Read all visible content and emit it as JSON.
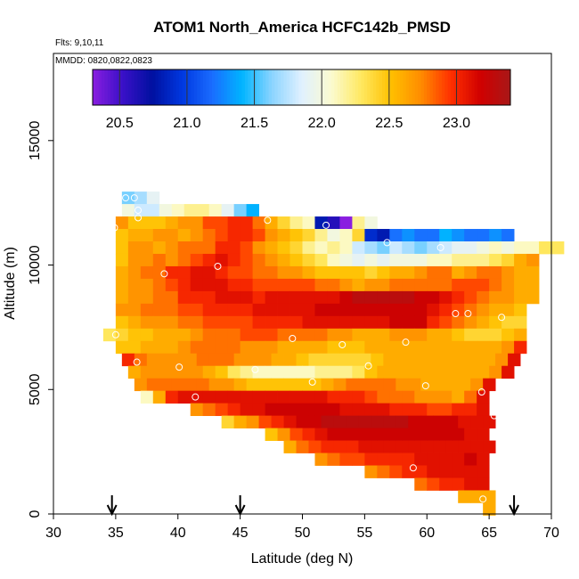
{
  "chart_data": {
    "type": "heatmap",
    "title": "ATOM1 North_America HCFC142b_PMSD",
    "annotations": [
      "Flts: 9,10,11",
      "MMDD: 0820,0822,0823"
    ],
    "xlabel": "Latitude (deg N)",
    "ylabel": "Altitude (m)",
    "xlim": [
      30,
      70
    ],
    "ylim": [
      0,
      18500
    ],
    "x_ticks": [
      30,
      35,
      40,
      45,
      50,
      55,
      60,
      65,
      70
    ],
    "x_tick_labels": [
      "30",
      "35",
      "40",
      "45",
      "50",
      "55",
      "60",
      "65",
      "70"
    ],
    "y_ticks": [
      0,
      5000,
      10000,
      15000
    ],
    "y_tick_labels": [
      "0",
      "5000",
      "10000",
      "15000"
    ],
    "colorbar": {
      "range": [
        20.3,
        23.4
      ],
      "ticks": [
        20.5,
        21.0,
        21.5,
        22.0,
        22.5,
        23.0
      ],
      "tick_labels": [
        "20.5",
        "21.0",
        "21.5",
        "22.0",
        "22.5",
        "23.0"
      ],
      "colors": [
        "#8a1ee0",
        "#3a10c8",
        "#0010a0",
        "#0038e0",
        "#1a6cff",
        "#00b4ff",
        "#8ad4ff",
        "#e0f0ff",
        "#fbfbd0",
        "#ffe860",
        "#ffc000",
        "#ff8c00",
        "#ff3000",
        "#d00000",
        "#a81818"
      ]
    },
    "grid": false,
    "legend": "colorbar top inside plot",
    "cell_size": {
      "dlat": 1.0,
      "dalt": 500
    },
    "cells_rows": [
      {
        "alt": 12700,
        "lat0": 35.5,
        "values": [
          21.6,
          21.7,
          21.9
        ]
      },
      {
        "alt": 12200,
        "lat0": 35.5,
        "values": [
          22.0,
          21.8,
          21.8,
          22.0,
          22.1,
          22.2,
          22.2,
          22.1,
          21.9,
          21.6,
          21.4
        ]
      },
      {
        "alt": 11700,
        "lat0": 35.0,
        "values": [
          22.7,
          22.5,
          22.5,
          22.5,
          22.6,
          22.7,
          22.7,
          22.9,
          22.9,
          23.0,
          23.0,
          22.8,
          22.6,
          22.4,
          22.2,
          22.1,
          20.8,
          20.6,
          20.3,
          22.2,
          22.0
        ]
      },
      {
        "alt": 11200,
        "lat0": 35.0,
        "values": [
          22.5,
          22.6,
          22.6,
          22.7,
          22.7,
          22.6,
          22.7,
          22.8,
          22.9,
          23.0,
          23.0,
          22.9,
          22.7,
          22.6,
          22.5,
          22.4,
          22.2,
          22.0,
          22.1,
          22.4,
          20.9,
          20.8,
          21.2,
          21.3,
          21.2,
          21.2,
          21.4,
          21.3,
          21.2,
          21.2,
          21.3,
          21.2
        ]
      },
      {
        "alt": 10700,
        "lat0": 35.0,
        "values": [
          22.5,
          22.7,
          22.7,
          22.6,
          22.7,
          22.8,
          22.8,
          22.8,
          23.0,
          23.0,
          22.9,
          22.7,
          22.6,
          22.5,
          22.4,
          22.2,
          22.1,
          22.2,
          22.1,
          21.8,
          21.7,
          21.6,
          21.8,
          21.7,
          21.6,
          21.7,
          21.8,
          21.9,
          21.9,
          22.0,
          22.1,
          22.0,
          22.1,
          22.1,
          22.3,
          22.3
        ]
      },
      {
        "alt": 10200,
        "lat0": 35.0,
        "values": [
          22.5,
          22.7,
          22.7,
          22.8,
          22.7,
          22.8,
          22.9,
          23.0,
          23.1,
          23.0,
          22.9,
          22.8,
          22.7,
          22.6,
          22.5,
          22.4,
          22.3,
          22.1,
          22.0,
          21.9,
          22.0,
          21.9,
          22.0,
          22.0,
          22.0,
          22.1,
          22.1,
          22.2,
          22.2,
          22.2,
          22.3,
          22.4,
          22.6,
          22.7
        ]
      },
      {
        "alt": 9700,
        "lat0": 35.0,
        "values": [
          22.6,
          22.7,
          22.8,
          22.8,
          23.0,
          23.0,
          23.1,
          23.1,
          23.0,
          22.9,
          22.9,
          22.8,
          22.8,
          22.7,
          22.7,
          22.6,
          22.5,
          22.5,
          22.5,
          22.5,
          22.4,
          22.5,
          22.6,
          22.6,
          22.7,
          22.8,
          22.8,
          22.6,
          22.7,
          22.8,
          22.8,
          22.7,
          22.6,
          22.6
        ]
      },
      {
        "alt": 9200,
        "lat0": 35.0,
        "values": [
          22.6,
          22.7,
          22.7,
          22.8,
          22.9,
          23.0,
          23.1,
          23.1,
          23.1,
          23.0,
          23.0,
          22.9,
          22.9,
          22.9,
          22.9,
          22.9,
          22.8,
          22.8,
          22.7,
          22.6,
          22.7,
          22.7,
          22.8,
          22.8,
          22.8,
          22.8,
          22.8,
          22.9,
          22.9,
          22.9,
          22.8,
          22.7,
          22.6,
          22.6
        ]
      },
      {
        "alt": 8700,
        "lat0": 35.0,
        "values": [
          22.6,
          22.7,
          22.7,
          22.8,
          22.8,
          23.0,
          23.0,
          23.0,
          23.1,
          23.1,
          23.1,
          23.0,
          23.1,
          23.1,
          23.1,
          23.1,
          23.1,
          23.1,
          23.2,
          23.3,
          23.3,
          23.3,
          23.3,
          23.3,
          23.2,
          23.2,
          23.1,
          23.0,
          22.9,
          22.8,
          22.7,
          22.7,
          22.6,
          22.6
        ]
      },
      {
        "alt": 8200,
        "lat0": 35.0,
        "values": [
          22.7,
          22.7,
          22.8,
          22.8,
          22.8,
          22.9,
          22.9,
          23.0,
          23.0,
          23.0,
          23.0,
          23.1,
          23.1,
          23.1,
          23.1,
          23.1,
          23.2,
          23.2,
          23.2,
          23.2,
          23.2,
          23.2,
          23.2,
          23.2,
          23.2,
          23.1,
          23.0,
          22.9,
          22.8,
          22.7,
          22.6,
          22.6,
          22.5
        ]
      },
      {
        "alt": 7700,
        "lat0": 35.0,
        "values": [
          22.5,
          22.6,
          22.7,
          22.7,
          22.7,
          22.8,
          22.8,
          22.9,
          22.9,
          22.9,
          22.9,
          23.0,
          23.0,
          23.0,
          23.0,
          23.1,
          23.1,
          23.1,
          23.1,
          23.1,
          23.1,
          23.1,
          23.2,
          23.2,
          23.2,
          23.0,
          22.9,
          22.8,
          22.7,
          22.6,
          22.5,
          22.4,
          22.4
        ]
      },
      {
        "alt": 7200,
        "lat0": 34.0,
        "values": [
          22.3,
          22.4,
          22.5,
          22.5,
          22.6,
          22.6,
          22.6,
          22.7,
          22.8,
          22.8,
          22.8,
          22.9,
          22.9,
          22.9,
          22.8,
          22.8,
          22.8,
          22.8,
          22.7,
          22.7,
          22.6,
          22.6,
          22.6,
          22.7,
          22.7,
          22.7,
          22.6,
          22.6,
          22.5,
          22.4,
          22.4,
          22.4,
          22.5,
          22.6
        ]
      },
      {
        "alt": 6700,
        "lat0": 35.0,
        "values": [
          22.5,
          22.5,
          22.6,
          22.6,
          22.6,
          22.7,
          22.8,
          22.8,
          22.8,
          22.8,
          22.7,
          22.7,
          22.7,
          22.6,
          22.6,
          22.6,
          22.6,
          22.5,
          22.5,
          22.5,
          22.6,
          22.6,
          22.6,
          22.6,
          22.6,
          22.6,
          22.6,
          22.6,
          22.6,
          22.6,
          22.6,
          22.7,
          23.0
        ]
      },
      {
        "alt": 6200,
        "lat0": 35.5,
        "values": [
          23.0,
          22.8,
          22.7,
          22.7,
          22.7,
          22.7,
          22.8,
          22.8,
          22.8,
          22.7,
          22.7,
          22.7,
          22.6,
          22.6,
          22.5,
          22.4,
          22.4,
          22.4,
          22.4,
          22.4,
          22.5,
          22.6,
          22.6,
          22.6,
          22.6,
          22.6,
          22.6,
          22.6,
          22.6,
          22.6,
          22.7,
          23.1
        ]
      },
      {
        "alt": 5700,
        "lat0": 36.0,
        "values": [
          22.6,
          22.7,
          22.7,
          22.7,
          22.7,
          22.7,
          22.6,
          22.5,
          22.3,
          22.2,
          22.1,
          22.1,
          22.1,
          22.1,
          22.1,
          22.2,
          22.2,
          22.2,
          22.3,
          22.5,
          22.6,
          22.6,
          22.6,
          22.6,
          22.6,
          22.6,
          22.6,
          22.6,
          22.6,
          22.7,
          23.1
        ]
      },
      {
        "alt": 5200,
        "lat0": 36.5,
        "values": [
          22.7,
          22.8,
          22.8,
          22.8,
          22.8,
          22.8,
          22.7,
          22.7,
          22.6,
          22.5,
          22.5,
          22.5,
          22.5,
          22.5,
          22.5,
          22.6,
          22.7,
          22.8,
          22.8,
          22.8,
          22.8,
          22.7,
          22.7,
          22.6,
          22.6,
          22.6,
          22.6,
          22.7,
          23.1
        ]
      },
      {
        "alt": 4700,
        "lat0": 37.0,
        "values": [
          22.1,
          22.6,
          23.0,
          23.1,
          23.1,
          23.1,
          23.1,
          23.1,
          23.1,
          23.1,
          23.1,
          23.1,
          23.1,
          23.1,
          23.1,
          23.0,
          23.0,
          23.0,
          22.9,
          22.8,
          22.8,
          22.8,
          22.7,
          22.7,
          22.7,
          22.6,
          22.8,
          23.1
        ]
      },
      {
        "alt": 4200,
        "lat0": 41.0,
        "values": [
          22.7,
          22.8,
          22.9,
          23.0,
          23.1,
          23.1,
          23.2,
          23.2,
          23.2,
          23.2,
          23.2,
          23.2,
          23.1,
          23.1,
          23.1,
          23.1,
          23.0,
          23.0,
          23.0,
          22.9,
          22.9,
          23.0,
          23.0,
          23.1
        ]
      },
      {
        "alt": 3700,
        "lat0": 43.5,
        "values": [
          22.4,
          22.6,
          22.7,
          22.9,
          23.0,
          23.1,
          23.2,
          23.2,
          23.3,
          23.3,
          23.3,
          23.3,
          23.3,
          23.3,
          23.3,
          23.2,
          23.2,
          23.2,
          23.2,
          23.1,
          23.1,
          23.1
        ]
      },
      {
        "alt": 3200,
        "lat0": 47.0,
        "values": [
          22.5,
          22.7,
          22.9,
          23.0,
          23.1,
          23.2,
          23.2,
          23.2,
          23.2,
          23.2,
          23.2,
          23.2,
          23.2,
          23.2,
          23.2,
          23.2,
          23.1,
          23.1
        ]
      },
      {
        "alt": 2700,
        "lat0": 48.5,
        "values": [
          22.6,
          22.8,
          22.9,
          23.0,
          23.0,
          23.0,
          23.1,
          23.1,
          23.1,
          23.1,
          23.1,
          23.1,
          23.1,
          23.1,
          23.1,
          23.1,
          23.1
        ]
      },
      {
        "alt": 2200,
        "lat0": 51.0,
        "values": [
          22.7,
          22.8,
          22.9,
          22.9,
          23.0,
          23.0,
          23.0,
          23.0,
          23.1,
          23.1,
          23.1,
          23.1,
          23.2,
          23.1
        ]
      },
      {
        "alt": 1700,
        "lat0": 55.0,
        "values": [
          22.7,
          22.8,
          22.9,
          23.0,
          23.0,
          23.1,
          23.1,
          23.1,
          23.1,
          23.1
        ]
      },
      {
        "alt": 1200,
        "lat0": 59.0,
        "values": [
          22.8,
          22.9,
          23.0,
          23.0,
          23.1,
          23.1
        ]
      },
      {
        "alt": 700,
        "lat0": 62.5,
        "values": [
          22.6,
          22.6,
          22.6
        ]
      },
      {
        "alt": 200,
        "lat0": 64.5,
        "values": [
          22.6
        ]
      }
    ],
    "sample_points": [
      {
        "lat": 35.8,
        "alt": 12700
      },
      {
        "lat": 36.5,
        "alt": 12700
      },
      {
        "lat": 36.8,
        "alt": 12200
      },
      {
        "lat": 36.8,
        "alt": 11900
      },
      {
        "lat": 34.9,
        "alt": 11500
      },
      {
        "lat": 47.2,
        "alt": 11800
      },
      {
        "lat": 51.9,
        "alt": 11600
      },
      {
        "lat": 56.8,
        "alt": 10900
      },
      {
        "lat": 61.1,
        "alt": 10700
      },
      {
        "lat": 43.2,
        "alt": 9950
      },
      {
        "lat": 38.9,
        "alt": 9650
      },
      {
        "lat": 62.3,
        "alt": 8050
      },
      {
        "lat": 63.3,
        "alt": 8050
      },
      {
        "lat": 66.0,
        "alt": 7900
      },
      {
        "lat": 35.0,
        "alt": 7200
      },
      {
        "lat": 49.2,
        "alt": 7050
      },
      {
        "lat": 53.2,
        "alt": 6800
      },
      {
        "lat": 58.3,
        "alt": 6900
      },
      {
        "lat": 36.7,
        "alt": 6100
      },
      {
        "lat": 40.1,
        "alt": 5900
      },
      {
        "lat": 46.2,
        "alt": 5800
      },
      {
        "lat": 55.3,
        "alt": 5950
      },
      {
        "lat": 50.8,
        "alt": 5300
      },
      {
        "lat": 59.9,
        "alt": 5150
      },
      {
        "lat": 64.4,
        "alt": 4900
      },
      {
        "lat": 41.4,
        "alt": 4700
      },
      {
        "lat": 65.4,
        "alt": 3950
      },
      {
        "lat": 58.9,
        "alt": 1850
      },
      {
        "lat": 64.5,
        "alt": 600
      }
    ],
    "flight_markers": [
      34.7,
      45.0,
      67.0
    ]
  }
}
